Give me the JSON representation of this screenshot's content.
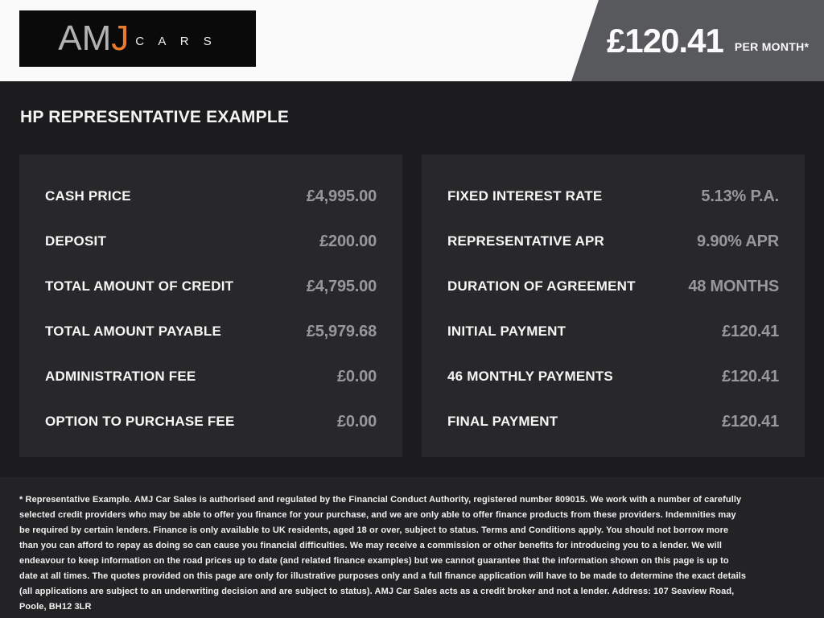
{
  "header": {
    "logo": {
      "am": "AM",
      "j": "J",
      "cars": "C A R S"
    },
    "price_banner": {
      "amount": "£120.41",
      "period": "PER MONTH*"
    }
  },
  "title": "HP REPRESENTATIVE EXAMPLE",
  "finance": {
    "left": [
      {
        "label": "CASH PRICE",
        "value": "£4,995.00"
      },
      {
        "label": "DEPOSIT",
        "value": "£200.00"
      },
      {
        "label": "TOTAL AMOUNT OF CREDIT",
        "value": "£4,795.00"
      },
      {
        "label": "TOTAL AMOUNT PAYABLE",
        "value": "£5,979.68"
      },
      {
        "label": "ADMINISTRATION FEE",
        "value": "£0.00"
      },
      {
        "label": "OPTION TO PURCHASE FEE",
        "value": "£0.00"
      }
    ],
    "right": [
      {
        "label": "FIXED INTEREST RATE",
        "value": "5.13% P.A."
      },
      {
        "label": "REPRESENTATIVE APR",
        "value": "9.90% APR"
      },
      {
        "label": "DURATION OF AGREEMENT",
        "value": "48 MONTHS"
      },
      {
        "label": "INITIAL PAYMENT",
        "value": "£120.41"
      },
      {
        "label": "46 MONTHLY PAYMENTS",
        "value": "£120.41"
      },
      {
        "label": "FINAL PAYMENT",
        "value": "£120.41"
      }
    ]
  },
  "footer": {
    "disclaimer": "* Representative Example. AMJ Car Sales is authorised and regulated by the Financial Conduct Authority, registered number 809015. We work with a number of carefully selected credit providers who may be able to offer you finance for your purchase, and we are only able to offer finance products from these providers. Indemnities may be required by certain lenders. Finance is only available to UK residents, aged 18 or over, subject to status. Terms and Conditions apply. You should not borrow more than you can afford to repay as doing so can cause you financial difficulties. We may receive a commission or other benefits for introducing you to a lender. We will endeavour to keep information on the road prices up to date (and related finance examples) but we cannot guarantee that the information shown on this page is up to date at all times. The quotes provided on this page are only for illustrative purposes only and a full finance application will have to be made to determine the exact details (all applications are subject to an underwriting decision and are subject to status). AMJ Car Sales acts as a credit broker and not a lender. Address: 107 Seaview Road, Poole, BH12 3LR"
  },
  "colors": {
    "brand_orange": "#e87b2e",
    "banner_gray": "#58595c",
    "page_background": "#1c1c1e",
    "panel_background": "#28282a",
    "footer_background": "#232325",
    "value_gray": "#98989a",
    "label_white": "#f6f6f6",
    "header_background": "#fafafa"
  }
}
